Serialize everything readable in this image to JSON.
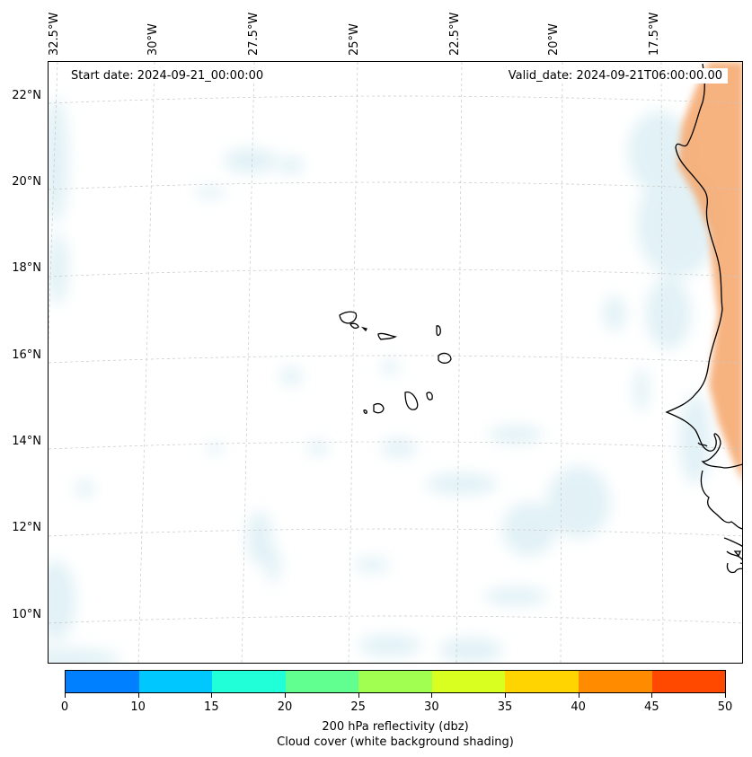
{
  "map": {
    "start_date": "Start date: 2024-09-21_00:00:00",
    "valid_date": "Valid_date: 2024-09-21T06:00:00.00",
    "longitude_labels": [
      "32.5°W",
      "30°W",
      "27.5°W",
      "25°W",
      "22.5°W",
      "20°W",
      "17.5°W"
    ],
    "latitude_labels": [
      "22°N",
      "20°N",
      "18°N",
      "16°N",
      "14°N",
      "12°N",
      "10°N"
    ],
    "features": [
      "Cape Verde islands",
      "West African coastline"
    ],
    "colors": {
      "cloud_shading": "#c9e6ef",
      "reflectivity_shading": "#f5a66a",
      "coastline": "#000000",
      "gridline": "#c8c8c8"
    }
  },
  "colorbar": {
    "ticks": [
      "0",
      "10",
      "15",
      "20",
      "25",
      "30",
      "35",
      "40",
      "45",
      "50"
    ],
    "colors": [
      "#0080ff",
      "#00c8ff",
      "#20ffd8",
      "#60ff90",
      "#a0ff50",
      "#d8ff20",
      "#ffd400",
      "#ff8c00",
      "#ff4800"
    ],
    "label_line1": "200 hPa reflectivity (dbz)",
    "label_line2": "Cloud cover (white background shading)"
  }
}
